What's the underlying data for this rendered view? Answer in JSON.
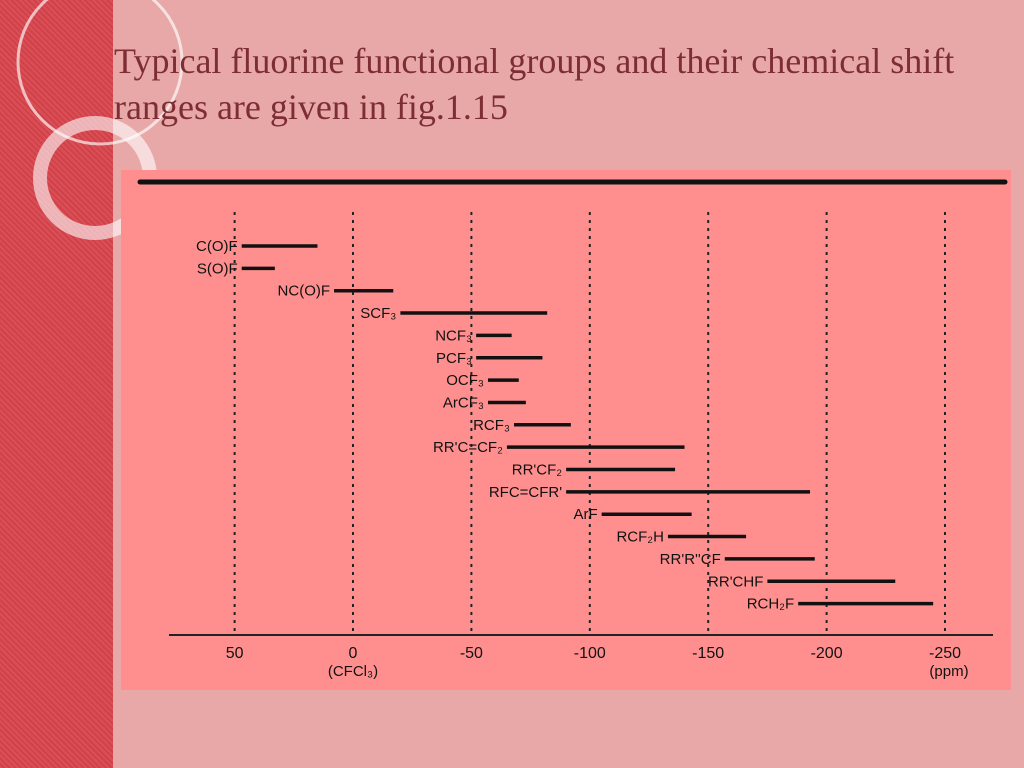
{
  "slide": {
    "title": "Typical fluorine functional groups and their chemical shift ranges are given in fig.1.15"
  },
  "colors": {
    "background": "#e8a8a8",
    "left_band": "#d8444c",
    "figure_background": "#ff8f8f",
    "title_text": "#7d2e34",
    "ink": "#111111"
  },
  "chart_data": {
    "type": "range-bar",
    "categories": [
      "C(O)F",
      "S(O)F",
      "NC(O)F",
      "SCF₃",
      "NCF₃",
      "PCF₃",
      "OCF₃",
      "ArCF₃",
      "RCF₃",
      "RR'C=CF₂",
      "RR'CF₂",
      "RFC=CFR'",
      "ArF",
      "RCF₂H",
      "RR'R''CF",
      "RR'CHF",
      "RCH₂F"
    ],
    "ranges": [
      [
        47,
        15
      ],
      [
        47,
        33
      ],
      [
        8,
        -17
      ],
      [
        -20,
        -82
      ],
      [
        -52,
        -67
      ],
      [
        -52,
        -80
      ],
      [
        -57,
        -70
      ],
      [
        -57,
        -73
      ],
      [
        -68,
        -92
      ],
      [
        -65,
        -140
      ],
      [
        -90,
        -136
      ],
      [
        -90,
        -193
      ],
      [
        -105,
        -143
      ],
      [
        -133,
        -166
      ],
      [
        -157,
        -195
      ],
      [
        -175,
        -229
      ],
      [
        -188,
        -245
      ]
    ],
    "x_ticks": [
      {
        "value": 50,
        "label": "50"
      },
      {
        "value": 0,
        "label": "0"
      },
      {
        "value": -50,
        "label": "-50"
      },
      {
        "value": -100,
        "label": "-100"
      },
      {
        "value": -150,
        "label": "-150"
      },
      {
        "value": -200,
        "label": "-200"
      },
      {
        "value": -250,
        "label": "-250"
      }
    ],
    "x_reference_label": "(CFCl₃)",
    "x_unit_label": "(ppm)",
    "xlim": [
      70,
      -270
    ],
    "grid": "vertical dotted lines at each tick",
    "title": "",
    "xlabel": "",
    "ylabel": ""
  }
}
